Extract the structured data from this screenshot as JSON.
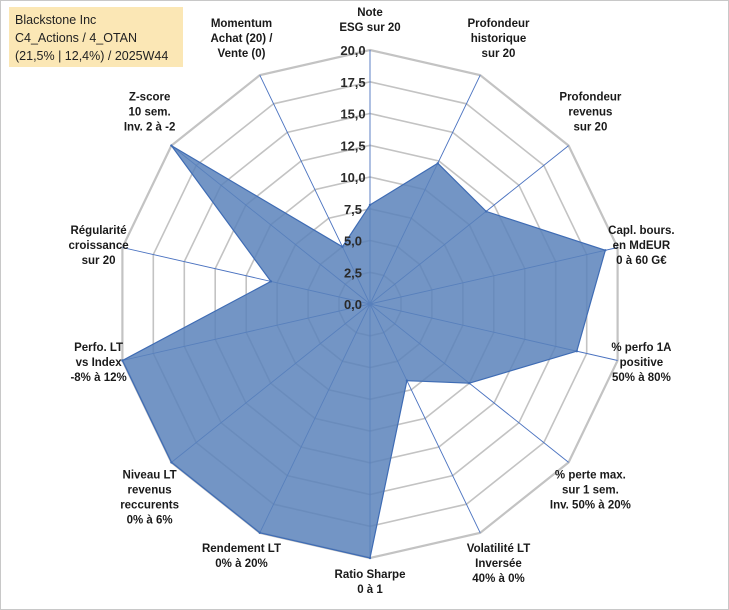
{
  "info": {
    "line1": "Blackstone Inc",
    "line2": "C4_Actions / 4_OTAN",
    "line3": "(21,5% | 12,4%) / 2025W44"
  },
  "colors": {
    "fill": "#5b83bb",
    "stroke": "#3f6cb4",
    "grid": "#c3c3c3",
    "spoke": "#4a72c0",
    "info_bg": "#fbe7b5"
  },
  "chart_data": {
    "type": "radar",
    "rmax": 20,
    "tick_labels": [
      "0,0",
      "2,5",
      "5,0",
      "7,5",
      "10,0",
      "12,5",
      "15,0",
      "17,5",
      "20,0"
    ],
    "axes": [
      {
        "name": "esg",
        "label": [
          "Note",
          "ESG sur 20"
        ],
        "value": 7.8
      },
      {
        "name": "profondeur-historique",
        "label": [
          "Profondeur",
          "historique",
          "sur 20"
        ],
        "value": 12.3
      },
      {
        "name": "profondeur-revenus",
        "label": [
          "Profondeur",
          "revenus",
          "sur 20"
        ],
        "value": 11.7
      },
      {
        "name": "capitalisation",
        "label": [
          "Capl. bours.",
          "en MdEUR",
          "0 à 60 G€"
        ],
        "value": 19.0
      },
      {
        "name": "perfo-1a",
        "label": [
          "% perfo 1A",
          "positive",
          "50% à 80%"
        ],
        "value": 16.7
      },
      {
        "name": "perte-max",
        "label": [
          "% perte max.",
          "sur 1 sem.",
          "Inv. 50% à 20%"
        ],
        "value": 10.0
      },
      {
        "name": "volatilite",
        "label": [
          "Volatilité LT",
          "Inversée",
          "40% à 0%"
        ],
        "value": 6.7
      },
      {
        "name": "ratio-sharpe",
        "label": [
          "Ratio Sharpe",
          "0 à 1"
        ],
        "value": 20.0
      },
      {
        "name": "rendement-lt",
        "label": [
          "Rendement LT",
          "0% à 20%"
        ],
        "value": 20.0
      },
      {
        "name": "revenus-recurrents",
        "label": [
          "Niveau LT",
          "revenus",
          "reccurents",
          "0% à 6%"
        ],
        "value": 20.0
      },
      {
        "name": "perfo-lt-index",
        "label": [
          "Perfo. LT",
          "vs Index",
          "-8% à 12%"
        ],
        "value": 20.0
      },
      {
        "name": "regularite-croissance",
        "label": [
          "Régularité",
          "croissance",
          "sur 20"
        ],
        "value": 8.0
      },
      {
        "name": "z-score",
        "label": [
          "Z-score",
          "10 sem.",
          "Inv. 2 à -2"
        ],
        "value": 20.0
      },
      {
        "name": "momentum",
        "label": [
          "Momentum",
          "Achat (20) /",
          "Vente (0)"
        ],
        "value": 5.0
      }
    ]
  }
}
